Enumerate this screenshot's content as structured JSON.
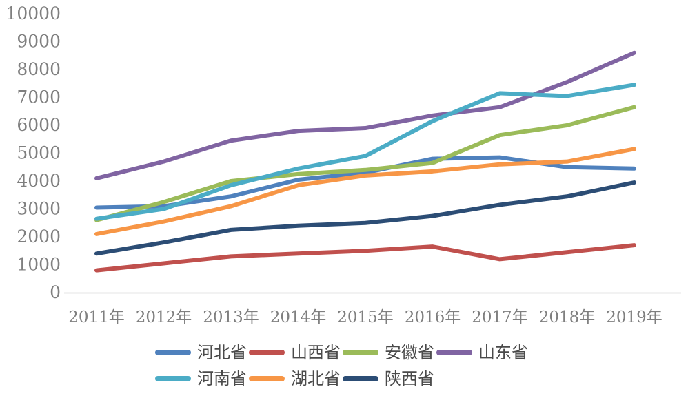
{
  "chart_data": {
    "type": "line",
    "title": "",
    "xlabel": "",
    "ylabel": "",
    "categories": [
      "2011年",
      "2012年",
      "2013年",
      "2014年",
      "2015年",
      "2016年",
      "2017年",
      "2018年",
      "2019年"
    ],
    "series": [
      {
        "name": "河北省",
        "color": "#4F81BD",
        "values": [
          3050,
          3100,
          3450,
          4050,
          4300,
          4800,
          4850,
          4500,
          4450
        ]
      },
      {
        "name": "山西省",
        "color": "#C0504D",
        "values": [
          800,
          1050,
          1300,
          1400,
          1500,
          1650,
          1200,
          1450,
          1700
        ]
      },
      {
        "name": "安徽省",
        "color": "#9BBB59",
        "values": [
          2600,
          3250,
          4000,
          4250,
          4400,
          4650,
          5650,
          6000,
          6650
        ]
      },
      {
        "name": "山东省",
        "color": "#8064A2",
        "values": [
          4100,
          4700,
          5450,
          5800,
          5900,
          6350,
          6650,
          7550,
          8600
        ]
      },
      {
        "name": "河南省",
        "color": "#4BACC6",
        "values": [
          2650,
          3000,
          3850,
          4450,
          4900,
          6150,
          7150,
          7050,
          7450
        ]
      },
      {
        "name": "湖北省",
        "color": "#F79646",
        "values": [
          2100,
          2550,
          3100,
          3850,
          4200,
          4350,
          4600,
          4700,
          5150
        ]
      },
      {
        "name": "陕西省",
        "color": "#2C4D75",
        "values": [
          1400,
          1800,
          2250,
          2400,
          2500,
          2750,
          3150,
          3450,
          3950
        ]
      }
    ],
    "ylim": [
      0,
      10000
    ],
    "ytick_step": 1000,
    "ytick_labels": [
      "0",
      "1000",
      "2000",
      "3000",
      "4000",
      "5000",
      "6000",
      "7000",
      "8000",
      "9000",
      "10000"
    ],
    "grid": false,
    "legend_position": "bottom",
    "axis_color": "#c9c9c9",
    "tick_label_color": "#7f7f7f",
    "line_width": 6
  }
}
